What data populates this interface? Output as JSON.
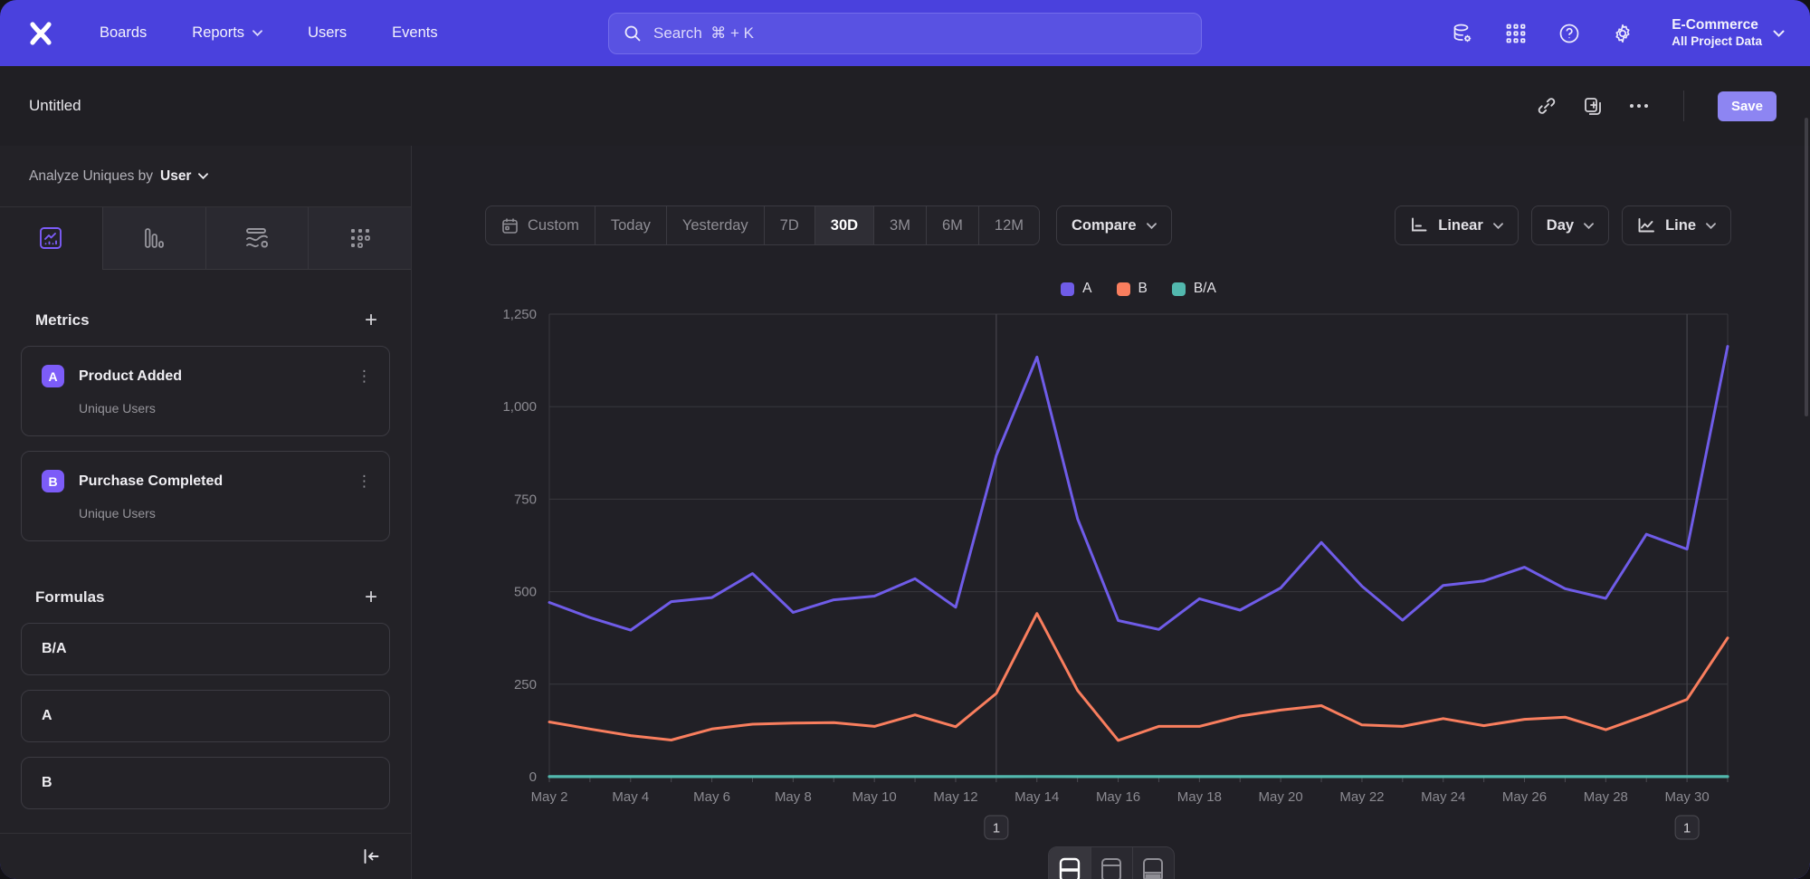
{
  "colors": {
    "accent": "#4a41dd",
    "series_a": "#6f5ce8",
    "series_b": "#f97e5e",
    "series_ratio": "#52b8ae",
    "save_bg": "#8d85f2",
    "badge_bg": "#7c5cf8"
  },
  "header": {
    "nav_items": [
      {
        "label": "Boards",
        "has_chevron": false
      },
      {
        "label": "Reports",
        "has_chevron": true
      },
      {
        "label": "Users",
        "has_chevron": false
      },
      {
        "label": "Events",
        "has_chevron": false
      }
    ],
    "search_placeholder": "Search  ⌘ + K",
    "icons": [
      "data-sources-icon",
      "apps-grid-icon",
      "help-icon",
      "settings-gear-icon"
    ],
    "project_name": "E-Commerce",
    "project_scope": "All Project Data"
  },
  "titlebar": {
    "title": "Untitled",
    "actions": [
      "link-icon",
      "duplicate-icon",
      "more-icon"
    ],
    "save_label": "Save"
  },
  "sidebar": {
    "analyze_prefix": "Analyze Uniques by",
    "analyze_value": "User",
    "metrics_title": "Metrics",
    "metrics": [
      {
        "letter": "A",
        "name": "Product Added",
        "measure": "Unique Users"
      },
      {
        "letter": "B",
        "name": "Purchase Completed",
        "measure": "Unique Users"
      }
    ],
    "formulas_title": "Formulas",
    "formulas": [
      "B/A",
      "A",
      "B"
    ]
  },
  "controls": {
    "date_ranges": [
      "Custom",
      "Today",
      "Yesterday",
      "7D",
      "30D",
      "3M",
      "6M",
      "12M"
    ],
    "active_range": "30D",
    "compare_label": "Compare",
    "scale_label": "Linear",
    "granularity_label": "Day",
    "chart_type_label": "Line"
  },
  "chart_data": {
    "type": "line",
    "title": "",
    "x": [
      "May 2",
      "May 3",
      "May 4",
      "May 5",
      "May 6",
      "May 7",
      "May 8",
      "May 9",
      "May 10",
      "May 11",
      "May 12",
      "May 13",
      "May 14",
      "May 15",
      "May 16",
      "May 17",
      "May 18",
      "May 19",
      "May 20",
      "May 21",
      "May 22",
      "May 23",
      "May 24",
      "May 25",
      "May 26",
      "May 27",
      "May 28",
      "May 29",
      "May 30",
      "May 31"
    ],
    "x_tick_labels": [
      "May 2",
      "May 4",
      "May 6",
      "May 8",
      "May 10",
      "May 12",
      "May 14",
      "May 16",
      "May 18",
      "May 20",
      "May 22",
      "May 24",
      "May 26",
      "May 28",
      "May 30"
    ],
    "ylim": [
      0,
      1250
    ],
    "y_ticks": [
      0,
      250,
      500,
      750,
      1000,
      1250
    ],
    "y_tick_labels": [
      "0",
      "250",
      "500",
      "750",
      "1,000",
      "1,250"
    ],
    "grid": "horizontal",
    "legend_position": "top",
    "series": [
      {
        "name": "A",
        "color": "#6f5ce8",
        "values": [
          471,
          430,
          396,
          473,
          484,
          549,
          444,
          478,
          488,
          535,
          458,
          868,
          1134,
          697,
          422,
          398,
          481,
          450,
          510,
          633,
          515,
          423,
          517,
          529,
          566,
          508,
          482,
          655,
          615,
          1163
        ]
      },
      {
        "name": "B",
        "color": "#f97e5e",
        "values": [
          148,
          129,
          111,
          99,
          129,
          142,
          145,
          146,
          136,
          167,
          135,
          225,
          441,
          233,
          98,
          136,
          136,
          164,
          180,
          192,
          140,
          136,
          157,
          138,
          155,
          161,
          127,
          166,
          209,
          375
        ]
      },
      {
        "name": "B/A",
        "color": "#52b8ae",
        "values": [
          0.31,
          0.3,
          0.28,
          0.21,
          0.27,
          0.26,
          0.33,
          0.31,
          0.28,
          0.31,
          0.29,
          0.26,
          0.39,
          0.33,
          0.23,
          0.34,
          0.28,
          0.36,
          0.35,
          0.3,
          0.27,
          0.32,
          0.3,
          0.26,
          0.27,
          0.32,
          0.26,
          0.25,
          0.34,
          0.32
        ]
      }
    ],
    "annotations": [
      {
        "label": "1",
        "x": "May 13"
      },
      {
        "label": "1",
        "x": "May 30"
      }
    ]
  },
  "footer_toggle": [
    "chart-and-table-view",
    "chart-only-view",
    "table-only-view"
  ]
}
